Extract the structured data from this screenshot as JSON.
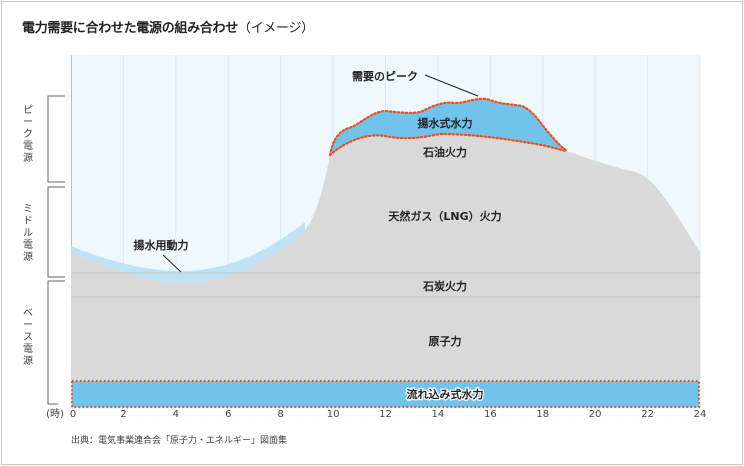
{
  "title": "電力需要に合わせた電源の組み合わせ",
  "title_suffix": "（イメージ）",
  "bands": {
    "peak": "ピーク電源",
    "middle": "ミドル電源",
    "base": "ベース電源"
  },
  "labels": {
    "demand_peak": "需要のピーク",
    "pumped_hydro": "揚水式水力",
    "oil": "石油火力",
    "lng": "天然ガス（LNG）火力",
    "pumping_power": "揚水用動力",
    "coal": "石炭火力",
    "nuclear": "原子力",
    "run_of_river": "流れ込み式水力"
  },
  "axis": {
    "unit": "(時)",
    "ticks": [
      "0",
      "2",
      "4",
      "6",
      "8",
      "10",
      "12",
      "14",
      "16",
      "18",
      "20",
      "22",
      "24"
    ]
  },
  "source": "出典：電気事業連合会「原子力・エネルギー」図面集",
  "colors": {
    "sky": "#eef8fd",
    "gray": "#d9d9d9",
    "blue": "#72c3ec",
    "light_blue": "#bfe3f5",
    "dotted": "#e8501e"
  }
}
